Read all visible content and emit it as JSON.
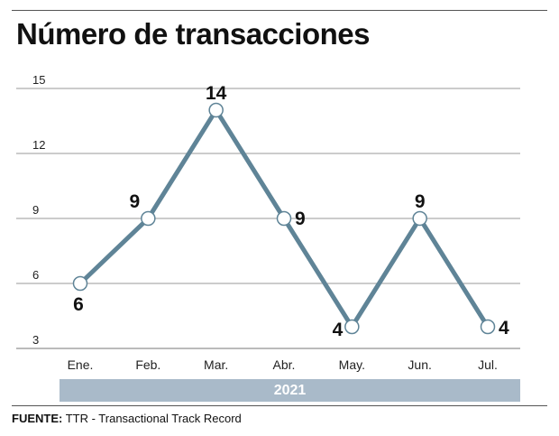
{
  "chart_data": {
    "type": "line",
    "title": "Número de transacciones",
    "categories": [
      "Ene.",
      "Feb.",
      "Mar.",
      "Abr.",
      "May.",
      "Jun.",
      "Jul."
    ],
    "values": [
      6,
      9,
      14,
      9,
      4,
      9,
      4
    ],
    "data_labels": [
      "6",
      "9",
      "14",
      "9",
      "4",
      "9",
      "4"
    ],
    "y_ticks": [
      "15",
      "12",
      "9",
      "6",
      "3"
    ],
    "ylim": [
      3,
      15
    ],
    "grid": true,
    "period_label": "2021",
    "line_color": "#5f8497",
    "marker_fill": "#ffffff",
    "grid_color": "#9a9a9a"
  },
  "source": {
    "label": "FUENTE:",
    "text": " TTR - Transactional Track Record"
  }
}
